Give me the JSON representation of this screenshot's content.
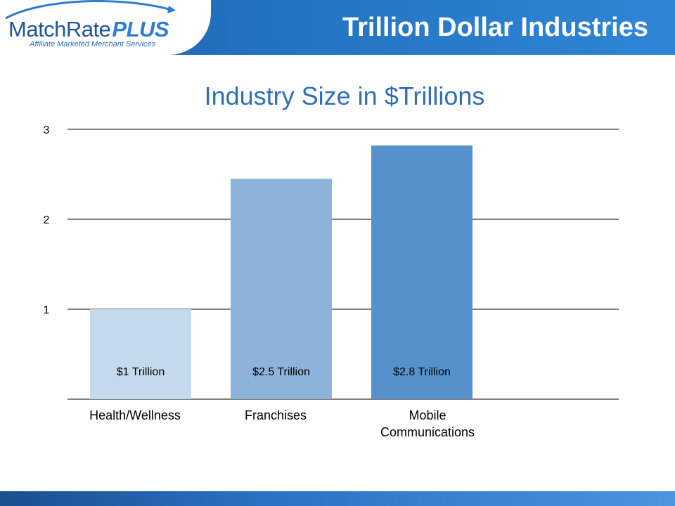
{
  "header": {
    "logo_main": "MatchRate",
    "logo_plus": "PLUS",
    "logo_tagline": "Affiliate Marketed Merchant Services",
    "title": "Trillion Dollar Industries"
  },
  "colors": {
    "header_blue": "#2474c3",
    "title_blue": "#2e6fb8",
    "bar_light": "#c5d9ec",
    "bar_mid": "#8db3da",
    "bar_dark": "#5592cc"
  },
  "chart_data": {
    "type": "bar",
    "title": "Industry Size in $Trillions",
    "categories": [
      "Health/Wellness",
      "Franchises",
      "Mobile Communications"
    ],
    "category_lines": [
      [
        "Health/Wellness"
      ],
      [
        "Franchises"
      ],
      [
        "Mobile",
        "Communications"
      ]
    ],
    "values": [
      1.0,
      2.45,
      2.82
    ],
    "data_labels": [
      "$1 Trillion",
      "$2.5 Trillion",
      "$2.8 Trillion"
    ],
    "bar_colors": [
      "#c5d9ec",
      "#8db3da",
      "#5592cc"
    ],
    "ylim": [
      0,
      3
    ],
    "yticks": [
      1,
      2,
      3
    ],
    "grid": true,
    "legend": "none",
    "xlabel": "",
    "ylabel": ""
  }
}
